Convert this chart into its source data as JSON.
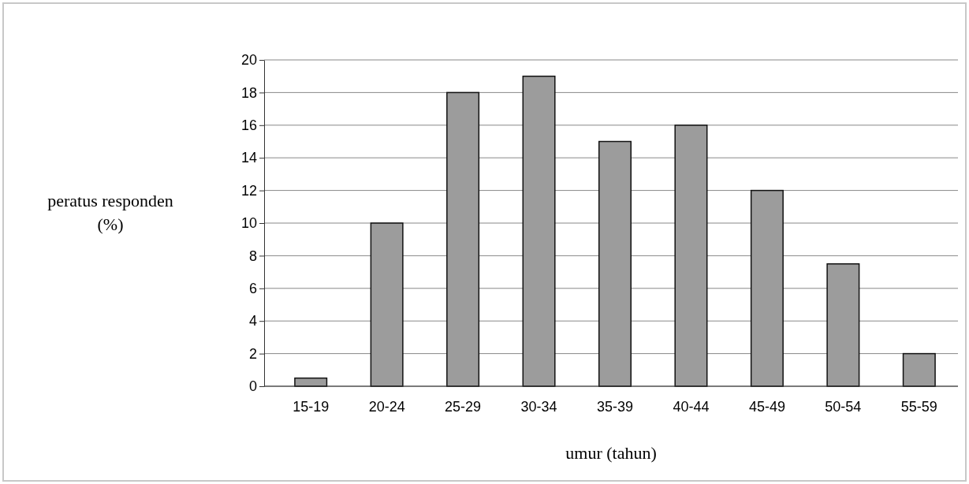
{
  "chart_data": {
    "type": "bar",
    "xlabel": "umur (tahun)",
    "ylabel": "peratus responden (%)",
    "categories": [
      "15-19",
      "20-24",
      "25-29",
      "30-34",
      "35-39",
      "40-44",
      "45-49",
      "50-54",
      "55-59"
    ],
    "values": [
      0.5,
      10,
      18,
      19,
      15,
      16,
      12,
      7.5,
      2
    ],
    "color": "#9c9c9c",
    "ylim": [
      0,
      20
    ],
    "yticks": [
      0,
      2,
      4,
      6,
      8,
      10,
      12,
      14,
      16,
      18,
      20
    ],
    "grid": "y"
  }
}
